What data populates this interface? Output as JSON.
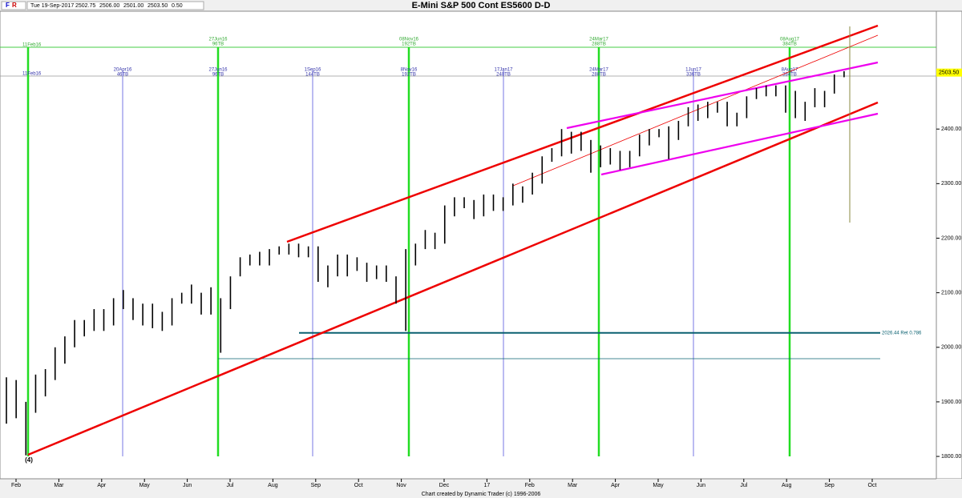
{
  "chart_data": {
    "type": "ohlc",
    "title": "E-Mini S&P 500 Cont ES5600 D-D",
    "toolbar": [
      "F",
      "R"
    ],
    "header_info": [
      "Tue 19-Sep-2017",
      "2502.75",
      "2506.00",
      "2501.00",
      "2503.50",
      "0.50"
    ],
    "footer": "Chart created by Dynamic Trader  (c) 1996-2006",
    "categories": [
      "Feb",
      "Mar",
      "Apr",
      "May",
      "Jun",
      "Jul",
      "Aug",
      "Sep",
      "Oct",
      "Nov",
      "Dec",
      "17",
      "Feb",
      "Mar",
      "Apr",
      "May",
      "Jun",
      "Jul",
      "Aug",
      "Sep",
      "Oct"
    ],
    "high": [
      1945,
      1940,
      1900,
      1950,
      1960,
      2000,
      2020,
      2050,
      2050,
      2070,
      2070,
      2090,
      2105,
      2090,
      2080,
      2080,
      2065,
      2090,
      2100,
      2115,
      2100,
      2110,
      2090,
      2130,
      2165,
      2170,
      2175,
      2180,
      2185,
      2190,
      2190,
      2185,
      2185,
      2150,
      2170,
      2170,
      2165,
      2155,
      2150,
      2150,
      2130,
      2180,
      2190,
      2215,
      2210,
      2260,
      2275,
      2275,
      2270,
      2280,
      2280,
      2275,
      2300,
      2295,
      2320,
      2350,
      2365,
      2400,
      2395,
      2395,
      2380,
      2370,
      2365,
      2360,
      2360,
      2390,
      2400,
      2400,
      2405,
      2415,
      2440,
      2445,
      2450,
      2450,
      2450,
      2430,
      2460,
      2475,
      2480,
      2480,
      2480,
      2470,
      2450,
      2475,
      2470,
      2500,
      2506
    ],
    "low": [
      1860,
      1870,
      1802,
      1880,
      1910,
      1940,
      1970,
      2000,
      2020,
      2030,
      2030,
      2040,
      2070,
      2050,
      2040,
      2035,
      2030,
      2040,
      2080,
      2080,
      2060,
      2060,
      1990,
      2070,
      2130,
      2150,
      2150,
      2150,
      2170,
      2170,
      2165,
      2165,
      2120,
      2110,
      2130,
      2130,
      2140,
      2120,
      2125,
      2120,
      2080,
      2030,
      2150,
      2180,
      2180,
      2190,
      2240,
      2255,
      2235,
      2240,
      2250,
      2250,
      2260,
      2265,
      2280,
      2300,
      2340,
      2350,
      2355,
      2360,
      2320,
      2330,
      2335,
      2325,
      2330,
      2350,
      2370,
      2385,
      2345,
      2380,
      2405,
      2415,
      2420,
      2430,
      2405,
      2405,
      2420,
      2455,
      2460,
      2460,
      2430,
      2420,
      2415,
      2440,
      2440,
      2465,
      2495
    ],
    "ylim": [
      1759,
      2616
    ],
    "yticks": [
      {
        "value": 1800,
        "label": "1800.00"
      },
      {
        "value": 1900,
        "label": "1900.00"
      },
      {
        "value": 2000,
        "label": "2000.00"
      },
      {
        "value": 2100,
        "label": "2100.00"
      },
      {
        "value": 2200,
        "label": "2200.00"
      },
      {
        "value": 2300,
        "label": "2300.00"
      },
      {
        "value": 2400,
        "label": "2400.00"
      }
    ],
    "last_price": {
      "value": 2503.5,
      "label": "2503.50"
    },
    "retracement": {
      "value": 2026.44,
      "label": "2026.44 Ret 0.786"
    },
    "wave_label": "(4)",
    "cycle_labels_green": [
      "11Feb16",
      "27Jun16",
      "96TB",
      "08Nov16",
      "192TB",
      "24Mar17",
      "288TB",
      "08Aug17",
      "384TB"
    ],
    "cycle_labels_blue": [
      "11Feb16",
      "20Apr16",
      "46TB",
      "27Jun16",
      "96TB",
      "1Sep16",
      "144TB",
      "8Nov16",
      "192TB",
      "17Jan17",
      "240TB",
      "24Mar17",
      "288TB",
      "1Jun17",
      "336TB",
      "8Aug17",
      "384TB"
    ]
  }
}
